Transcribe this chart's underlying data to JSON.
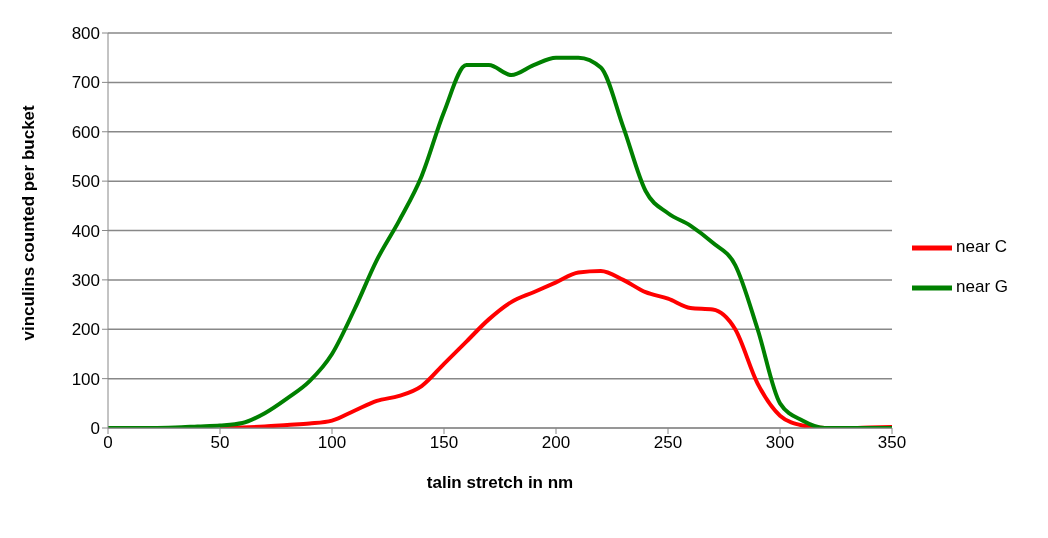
{
  "chart_data": {
    "type": "line",
    "xlabel": "talin stretch in nm",
    "ylabel": "vinculins counted per bucket",
    "x": [
      0,
      10,
      20,
      30,
      40,
      50,
      60,
      70,
      80,
      90,
      100,
      110,
      120,
      130,
      140,
      150,
      160,
      170,
      180,
      190,
      200,
      210,
      220,
      230,
      240,
      250,
      260,
      270,
      280,
      290,
      300,
      310,
      320,
      330,
      340,
      350
    ],
    "series": [
      {
        "name": "near C",
        "color": "#ff0000",
        "values": [
          null,
          null,
          null,
          null,
          null,
          0,
          1,
          3,
          6,
          9,
          15,
          35,
          55,
          65,
          85,
          130,
          175,
          220,
          255,
          275,
          295,
          315,
          318,
          300,
          275,
          262,
          243,
          240,
          200,
          90,
          25,
          5,
          0,
          0,
          1,
          2
        ]
      },
      {
        "name": "near G",
        "color": "#008000",
        "values": [
          0,
          0,
          0,
          1,
          3,
          5,
          10,
          30,
          60,
          95,
          150,
          240,
          340,
          420,
          510,
          640,
          735,
          735,
          715,
          735,
          750,
          750,
          730,
          610,
          480,
          435,
          410,
          375,
          330,
          200,
          50,
          15,
          0,
          0,
          0,
          0
        ]
      }
    ],
    "xlim": [
      0,
      350
    ],
    "xticks": [
      0,
      50,
      100,
      150,
      200,
      250,
      300,
      350
    ],
    "ylim": [
      0,
      800
    ],
    "yticks": [
      0,
      100,
      200,
      300,
      400,
      500,
      600,
      700,
      800
    ],
    "grid": "y",
    "legend": "right",
    "marker": "none",
    "line_style": "solid"
  }
}
